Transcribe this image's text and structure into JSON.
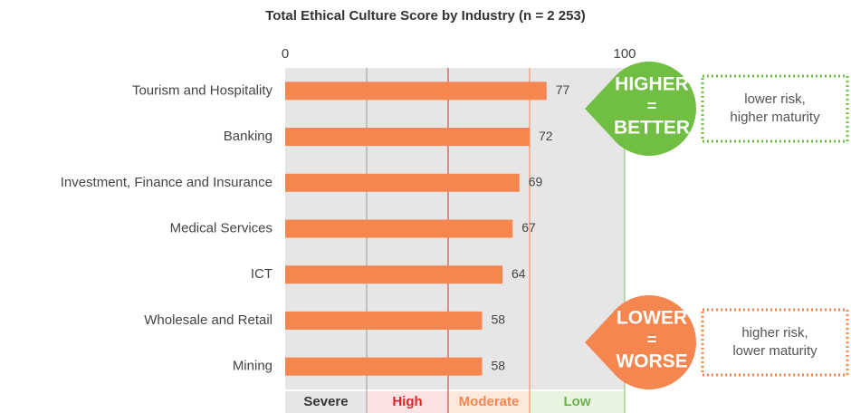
{
  "chart_data": {
    "type": "bar",
    "orientation": "horizontal",
    "title": "Total Ethical Culture Score by Industry (n = 2 253)",
    "categories": [
      "Tourism and Hospitality",
      "Banking",
      "Investment, Finance and Insurance",
      "Medical Services",
      "ICT",
      "Wholesale and Retail",
      "Mining"
    ],
    "values": [
      77,
      72,
      69,
      67,
      64,
      58,
      58
    ],
    "color": "#f5864f",
    "xlim": [
      0,
      100
    ],
    "xticks": [
      0,
      100
    ],
    "zones": [
      {
        "label": "Severe",
        "start": 0,
        "end": 24,
        "color": "#e6e6e6",
        "line": "#9a9a9a",
        "text_color": "#333333"
      },
      {
        "label": "High",
        "start": 24,
        "end": 48,
        "color": "#fbe3e3",
        "line": "#e0262b",
        "text_color": "#e0262b"
      },
      {
        "label": "Moderate",
        "start": 48,
        "end": 72,
        "color": "#fde8dc",
        "line": "#f5864f",
        "text_color": "#f5864f"
      },
      {
        "label": "Low",
        "start": 72,
        "end": 100,
        "color": "#e8f3e0",
        "line": "#7bc05a",
        "text_color": "#6db14c"
      }
    ],
    "callouts": [
      {
        "lines": [
          "HIGHER",
          "=",
          "BETTER"
        ],
        "note": [
          "lower risk,",
          "higher maturity"
        ],
        "color": "#70bf44"
      },
      {
        "lines": [
          "LOWER",
          "=",
          "WORSE"
        ],
        "note": [
          "higher risk,",
          "lower maturity"
        ],
        "color": "#f5864f"
      }
    ]
  }
}
